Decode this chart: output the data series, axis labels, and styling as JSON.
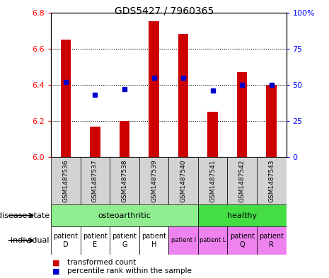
{
  "title": "GDS5427 / 7960365",
  "samples": [
    "GSM1487536",
    "GSM1487537",
    "GSM1487538",
    "GSM1487539",
    "GSM1487540",
    "GSM1487541",
    "GSM1487542",
    "GSM1487543"
  ],
  "red_values": [
    6.65,
    6.17,
    6.2,
    6.75,
    6.68,
    6.25,
    6.47,
    6.4
  ],
  "blue_percentiles": [
    52,
    43,
    47,
    55,
    55,
    46,
    50,
    50
  ],
  "ylim_left": [
    6.0,
    6.8
  ],
  "ylim_right": [
    0,
    100
  ],
  "yticks_left": [
    6.0,
    6.2,
    6.4,
    6.6,
    6.8
  ],
  "yticks_right": [
    0,
    25,
    50,
    75,
    100
  ],
  "disease_state_groups": [
    {
      "label": "osteoarthritic",
      "color": "#90EE90",
      "start": 0,
      "end": 5
    },
    {
      "label": "healthy",
      "color": "#44DD44",
      "start": 5,
      "end": 8
    }
  ],
  "individual_labels": [
    "patient\nD",
    "patient\nE",
    "patient\nG",
    "patient\nH",
    "patient I",
    "patient L",
    "patient\nQ",
    "patient\nR"
  ],
  "indiv_large": [
    true,
    true,
    true,
    true,
    false,
    false,
    true,
    true
  ],
  "indiv_bg": [
    "#FFFFFF",
    "#FFFFFF",
    "#FFFFFF",
    "#FFFFFF",
    "#EE82EE",
    "#EE82EE",
    "#EE82EE",
    "#EE82EE"
  ],
  "bar_color": "#CC0000",
  "dot_color": "#0000CC",
  "sample_bg_color": "#D3D3D3",
  "legend_red": "transformed count",
  "legend_blue": "percentile rank within the sample",
  "label_disease_state": "disease state",
  "label_individual": "individual",
  "bar_width": 0.35
}
